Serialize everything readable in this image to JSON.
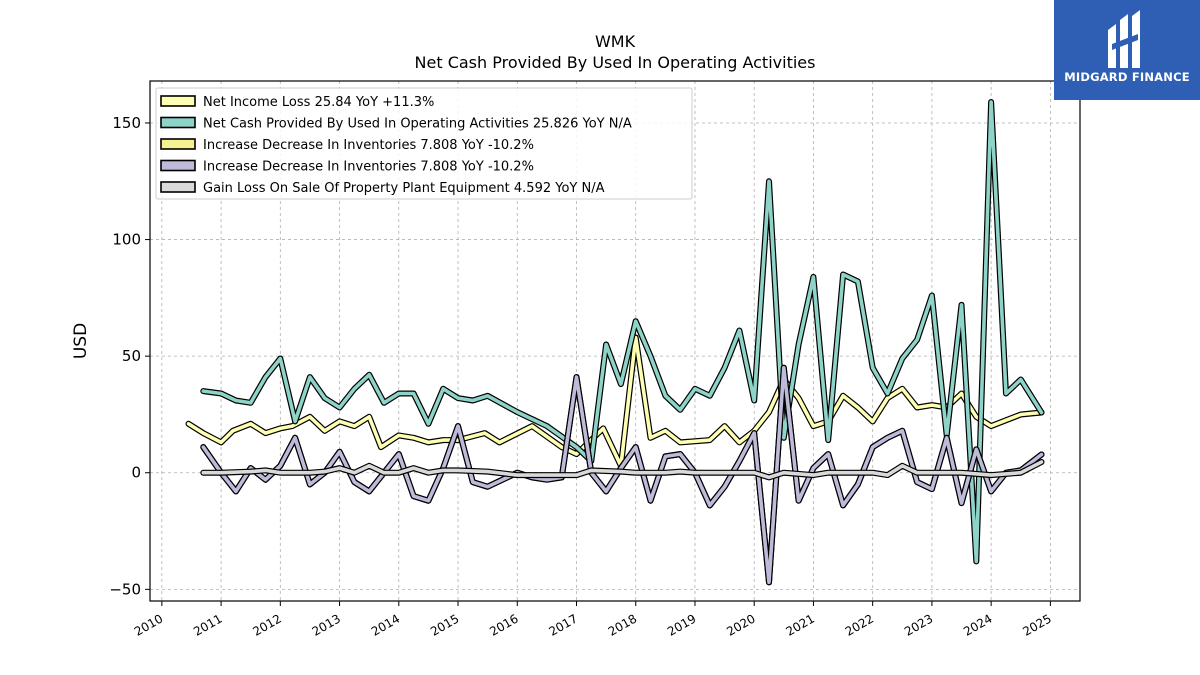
{
  "brand": {
    "name": "MIDGARD FINANCE",
    "color": "#2f5fb4"
  },
  "chart_data": {
    "type": "line",
    "title": "WMK",
    "subtitle": "Net Cash Provided By Used In Operating Activities",
    "ylabel": "USD",
    "xlabel": "",
    "ylim": [
      -55,
      168
    ],
    "xlim": [
      2009.8,
      2025.5
    ],
    "yticks": [
      -50,
      0,
      50,
      100,
      150
    ],
    "xticks": [
      "2010",
      "2011",
      "2012",
      "2013",
      "2014",
      "2015",
      "2016",
      "2017",
      "2018",
      "2019",
      "2020",
      "2021",
      "2022",
      "2023",
      "2024",
      "2025"
    ],
    "grid": true,
    "legend_position": "top-left",
    "series": [
      {
        "name": "Net Income Loss  25.84 YoY +11.3%",
        "color": "#ffffb3",
        "points": [
          [
            2010.45,
            21
          ],
          [
            2010.7,
            17
          ],
          [
            2011.0,
            13
          ],
          [
            2011.2,
            18
          ],
          [
            2011.5,
            21
          ],
          [
            2011.75,
            17
          ],
          [
            2012.0,
            19
          ],
          [
            2012.2,
            20
          ],
          [
            2012.5,
            24
          ],
          [
            2012.75,
            18
          ],
          [
            2013.0,
            22
          ],
          [
            2013.25,
            20
          ],
          [
            2013.5,
            24
          ],
          [
            2013.7,
            11
          ],
          [
            2014.0,
            16
          ],
          [
            2014.25,
            15
          ],
          [
            2014.5,
            13
          ],
          [
            2014.75,
            14
          ],
          [
            2015.0,
            14
          ],
          [
            2015.45,
            17
          ],
          [
            2015.7,
            13
          ],
          [
            2016.25,
            20
          ],
          [
            2016.75,
            11
          ],
          [
            2017.0,
            8
          ],
          [
            2017.45,
            19
          ],
          [
            2017.75,
            3
          ],
          [
            2018.0,
            58
          ],
          [
            2018.25,
            15
          ],
          [
            2018.5,
            18
          ],
          [
            2018.75,
            13
          ],
          [
            2019.25,
            14
          ],
          [
            2019.5,
            20
          ],
          [
            2019.75,
            13
          ],
          [
            2020.0,
            18
          ],
          [
            2020.25,
            26
          ],
          [
            2020.5,
            40
          ],
          [
            2020.75,
            32
          ],
          [
            2021.0,
            20
          ],
          [
            2021.25,
            22
          ],
          [
            2021.5,
            33
          ],
          [
            2021.75,
            28
          ],
          [
            2022.0,
            22
          ],
          [
            2022.25,
            32
          ],
          [
            2022.5,
            36
          ],
          [
            2022.75,
            28
          ],
          [
            2023.0,
            29
          ],
          [
            2023.25,
            28
          ],
          [
            2023.5,
            34
          ],
          [
            2023.75,
            24
          ],
          [
            2024.0,
            20
          ],
          [
            2024.5,
            25
          ],
          [
            2024.85,
            25.84
          ]
        ]
      },
      {
        "name": "Net Cash Provided By Used In Operating Activities  25.826 YoY N/A",
        "color": "#8dd3c7",
        "points": [
          [
            2010.7,
            35
          ],
          [
            2011.0,
            34
          ],
          [
            2011.25,
            31
          ],
          [
            2011.5,
            30
          ],
          [
            2011.75,
            41
          ],
          [
            2012.0,
            49
          ],
          [
            2012.25,
            22
          ],
          [
            2012.5,
            41
          ],
          [
            2012.75,
            32
          ],
          [
            2013.0,
            28
          ],
          [
            2013.25,
            36
          ],
          [
            2013.5,
            42
          ],
          [
            2013.75,
            30
          ],
          [
            2014.0,
            34
          ],
          [
            2014.25,
            34
          ],
          [
            2014.5,
            21
          ],
          [
            2014.75,
            36
          ],
          [
            2015.0,
            32
          ],
          [
            2015.25,
            31
          ],
          [
            2015.5,
            33
          ],
          [
            2016.0,
            26
          ],
          [
            2016.5,
            20
          ],
          [
            2017.0,
            11
          ],
          [
            2017.25,
            5
          ],
          [
            2017.5,
            55
          ],
          [
            2017.75,
            38
          ],
          [
            2018.0,
            65
          ],
          [
            2018.25,
            50
          ],
          [
            2018.5,
            33
          ],
          [
            2018.75,
            27
          ],
          [
            2019.0,
            36
          ],
          [
            2019.25,
            33
          ],
          [
            2019.5,
            45
          ],
          [
            2019.75,
            61
          ],
          [
            2020.0,
            31
          ],
          [
            2020.25,
            125
          ],
          [
            2020.5,
            15
          ],
          [
            2020.75,
            55
          ],
          [
            2021.0,
            84
          ],
          [
            2021.25,
            14
          ],
          [
            2021.5,
            85
          ],
          [
            2021.75,
            82
          ],
          [
            2022.0,
            45
          ],
          [
            2022.25,
            34
          ],
          [
            2022.5,
            49
          ],
          [
            2022.75,
            57
          ],
          [
            2023.0,
            76
          ],
          [
            2023.25,
            16
          ],
          [
            2023.5,
            72
          ],
          [
            2023.75,
            -38
          ],
          [
            2024.0,
            159
          ],
          [
            2024.25,
            34
          ],
          [
            2024.5,
            40
          ],
          [
            2024.85,
            25.826
          ]
        ]
      },
      {
        "name": "Increase Decrease In Inventories  7.808 YoY -10.2%",
        "color": "#f7f092",
        "points": [
          [
            2010.7,
            11
          ],
          [
            2011.0,
            0
          ],
          [
            2011.25,
            -8
          ],
          [
            2011.5,
            2
          ],
          [
            2011.75,
            -3
          ],
          [
            2012.0,
            3
          ],
          [
            2012.25,
            15
          ],
          [
            2012.5,
            -5
          ],
          [
            2012.75,
            0
          ],
          [
            2013.0,
            9
          ],
          [
            2013.25,
            -4
          ],
          [
            2013.5,
            -8
          ],
          [
            2013.75,
            0
          ],
          [
            2014.0,
            8
          ],
          [
            2014.25,
            -10
          ],
          [
            2014.5,
            -12
          ],
          [
            2014.75,
            2
          ],
          [
            2015.0,
            20
          ],
          [
            2015.25,
            -4
          ],
          [
            2015.5,
            -6
          ],
          [
            2016.0,
            0
          ],
          [
            2016.25,
            -2
          ],
          [
            2016.5,
            -3
          ],
          [
            2016.75,
            -2
          ],
          [
            2017.0,
            41
          ],
          [
            2017.25,
            0
          ],
          [
            2017.5,
            -8
          ],
          [
            2017.75,
            2
          ],
          [
            2018.0,
            11
          ],
          [
            2018.25,
            -12
          ],
          [
            2018.5,
            7
          ],
          [
            2018.75,
            8
          ],
          [
            2019.0,
            0
          ],
          [
            2019.25,
            -14
          ],
          [
            2019.5,
            -6
          ],
          [
            2019.75,
            5
          ],
          [
            2020.0,
            17
          ],
          [
            2020.25,
            -47
          ],
          [
            2020.5,
            45
          ],
          [
            2020.75,
            -12
          ],
          [
            2021.0,
            2
          ],
          [
            2021.25,
            8
          ],
          [
            2021.5,
            -14
          ],
          [
            2021.75,
            -5
          ],
          [
            2022.0,
            11
          ],
          [
            2022.25,
            15
          ],
          [
            2022.5,
            18
          ],
          [
            2022.75,
            -4
          ],
          [
            2023.0,
            -7
          ],
          [
            2023.25,
            15
          ],
          [
            2023.5,
            -13
          ],
          [
            2023.75,
            10
          ],
          [
            2024.0,
            -8
          ],
          [
            2024.25,
            0
          ],
          [
            2024.5,
            1
          ],
          [
            2024.85,
            7.808
          ]
        ]
      },
      {
        "name": "Increase Decrease In Inventories  7.808 YoY -10.2%",
        "color": "#bebada",
        "points": [
          [
            2010.7,
            11
          ],
          [
            2011.0,
            0
          ],
          [
            2011.25,
            -8
          ],
          [
            2011.5,
            2
          ],
          [
            2011.75,
            -3
          ],
          [
            2012.0,
            3
          ],
          [
            2012.25,
            15
          ],
          [
            2012.5,
            -5
          ],
          [
            2012.75,
            0
          ],
          [
            2013.0,
            9
          ],
          [
            2013.25,
            -4
          ],
          [
            2013.5,
            -8
          ],
          [
            2013.75,
            0
          ],
          [
            2014.0,
            8
          ],
          [
            2014.25,
            -10
          ],
          [
            2014.5,
            -12
          ],
          [
            2014.75,
            2
          ],
          [
            2015.0,
            20
          ],
          [
            2015.25,
            -4
          ],
          [
            2015.5,
            -6
          ],
          [
            2016.0,
            0
          ],
          [
            2016.25,
            -2
          ],
          [
            2016.5,
            -3
          ],
          [
            2016.75,
            -2
          ],
          [
            2017.0,
            41
          ],
          [
            2017.25,
            0
          ],
          [
            2017.5,
            -8
          ],
          [
            2017.75,
            2
          ],
          [
            2018.0,
            11
          ],
          [
            2018.25,
            -12
          ],
          [
            2018.5,
            7
          ],
          [
            2018.75,
            8
          ],
          [
            2019.0,
            0
          ],
          [
            2019.25,
            -14
          ],
          [
            2019.5,
            -6
          ],
          [
            2019.75,
            5
          ],
          [
            2020.0,
            17
          ],
          [
            2020.25,
            -47
          ],
          [
            2020.5,
            45
          ],
          [
            2020.75,
            -12
          ],
          [
            2021.0,
            2
          ],
          [
            2021.25,
            8
          ],
          [
            2021.5,
            -14
          ],
          [
            2021.75,
            -5
          ],
          [
            2022.0,
            11
          ],
          [
            2022.25,
            15
          ],
          [
            2022.5,
            18
          ],
          [
            2022.75,
            -4
          ],
          [
            2023.0,
            -7
          ],
          [
            2023.25,
            15
          ],
          [
            2023.5,
            -13
          ],
          [
            2023.75,
            10
          ],
          [
            2024.0,
            -8
          ],
          [
            2024.25,
            0
          ],
          [
            2024.5,
            1
          ],
          [
            2024.85,
            7.808
          ]
        ]
      },
      {
        "name": "Gain Loss On Sale Of Property Plant Equipment  4.592 YoY N/A",
        "color": "#d9d9d9",
        "points": [
          [
            2010.7,
            0
          ],
          [
            2011.0,
            0
          ],
          [
            2011.5,
            0.5
          ],
          [
            2011.75,
            1
          ],
          [
            2012.0,
            0
          ],
          [
            2012.5,
            0
          ],
          [
            2012.75,
            0.5
          ],
          [
            2013.0,
            2
          ],
          [
            2013.25,
            0
          ],
          [
            2013.5,
            3
          ],
          [
            2013.75,
            0
          ],
          [
            2014.0,
            0
          ],
          [
            2014.25,
            2
          ],
          [
            2014.5,
            0
          ],
          [
            2014.75,
            1
          ],
          [
            2015.0,
            1
          ],
          [
            2015.5,
            0.5
          ],
          [
            2016.0,
            -1
          ],
          [
            2016.5,
            -1
          ],
          [
            2017.0,
            -1
          ],
          [
            2017.25,
            1
          ],
          [
            2017.75,
            0.5
          ],
          [
            2018.0,
            0
          ],
          [
            2018.5,
            0
          ],
          [
            2018.75,
            0.5
          ],
          [
            2019.0,
            0
          ],
          [
            2019.5,
            0
          ],
          [
            2020.0,
            0
          ],
          [
            2020.25,
            -2
          ],
          [
            2020.5,
            0
          ],
          [
            2021.0,
            -1
          ],
          [
            2021.25,
            0
          ],
          [
            2021.75,
            0
          ],
          [
            2022.0,
            0
          ],
          [
            2022.25,
            -1
          ],
          [
            2022.5,
            3
          ],
          [
            2022.75,
            0
          ],
          [
            2023.0,
            0
          ],
          [
            2023.5,
            0
          ],
          [
            2024.0,
            -1
          ],
          [
            2024.5,
            0
          ],
          [
            2024.85,
            4.592
          ]
        ]
      }
    ]
  }
}
